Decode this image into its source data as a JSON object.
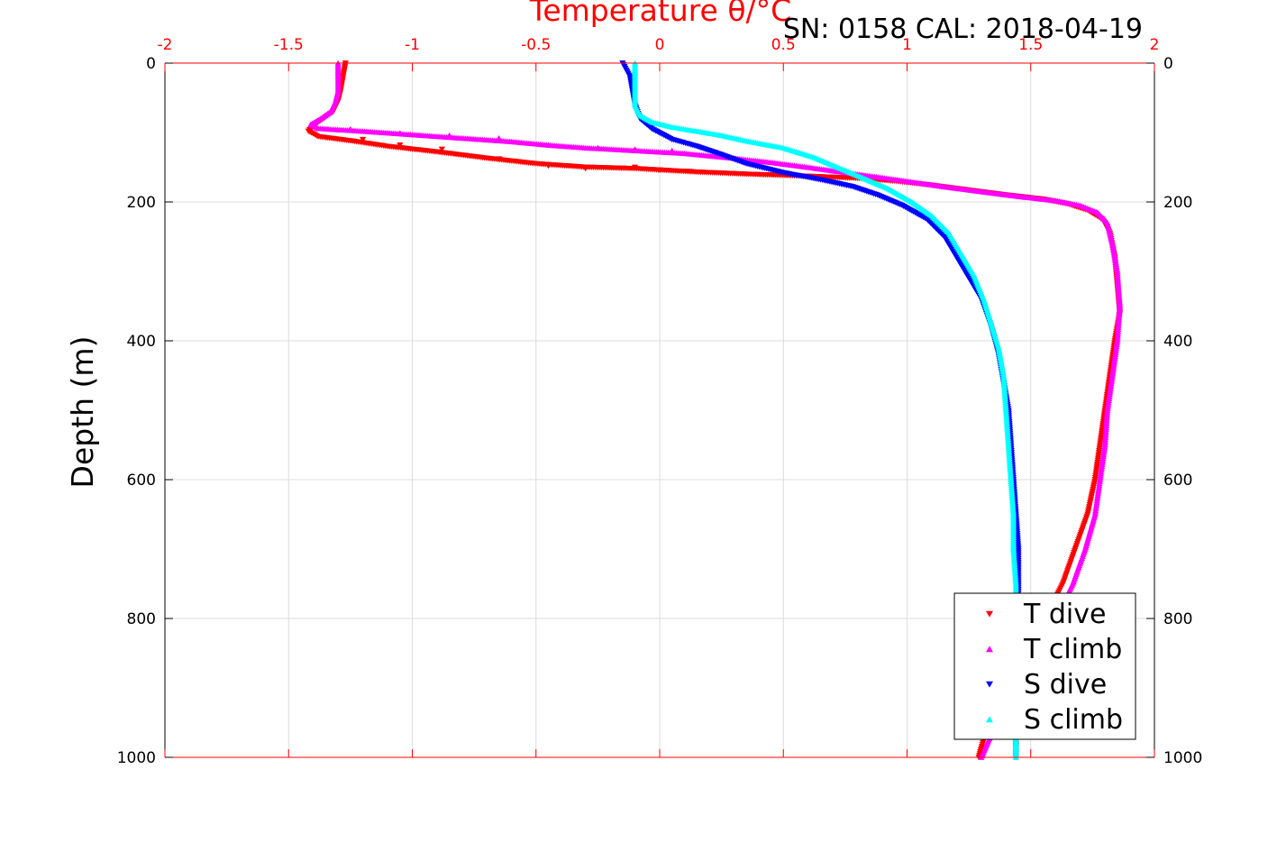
{
  "chart_data": {
    "type": "scatter",
    "title": "",
    "subtitle": "SN: 0158  CAL: 2018-04-19",
    "xlabel": "Temperature θ/°C",
    "ylabel": "Depth (m)",
    "xlim": [
      -2,
      2
    ],
    "ylim": [
      0,
      1000
    ],
    "y_reversed": true,
    "x_axis_position": "top",
    "x_ticks": [
      "-2",
      "-1.5",
      "-1",
      "-0.5",
      "0",
      "0.5",
      "1",
      "1.5",
      "2"
    ],
    "y_ticks_left": [
      "0",
      "200",
      "400",
      "600",
      "800",
      "1000"
    ],
    "y_ticks_right": [
      "0",
      "200",
      "400",
      "600",
      "800",
      "1000"
    ],
    "grid": true,
    "legend_position": "bottom-right",
    "series": [
      {
        "name": "T dive",
        "marker": "triangle-down",
        "color": "#ff0000",
        "profile": [
          [
            -1.27,
            0
          ],
          [
            -1.28,
            20
          ],
          [
            -1.29,
            40
          ],
          [
            -1.3,
            55
          ],
          [
            -1.32,
            70
          ],
          [
            -1.36,
            80
          ],
          [
            -1.4,
            90
          ],
          [
            -1.42,
            98
          ],
          [
            -1.38,
            106
          ],
          [
            -1.25,
            112
          ],
          [
            -1.1,
            120
          ],
          [
            -0.9,
            128
          ],
          [
            -0.7,
            137
          ],
          [
            -0.5,
            145
          ],
          [
            -0.3,
            150
          ],
          [
            -0.1,
            152
          ],
          [
            0.05,
            155
          ],
          [
            0.15,
            157
          ],
          [
            0.35,
            160
          ],
          [
            0.6,
            163
          ],
          [
            0.8,
            166
          ],
          [
            0.95,
            170
          ],
          [
            1.1,
            176
          ],
          [
            1.25,
            183
          ],
          [
            1.4,
            190
          ],
          [
            1.55,
            196
          ],
          [
            1.65,
            203
          ],
          [
            1.73,
            212
          ],
          [
            1.79,
            225
          ],
          [
            1.82,
            245
          ],
          [
            1.84,
            280
          ],
          [
            1.85,
            320
          ],
          [
            1.86,
            360
          ],
          [
            1.84,
            400
          ],
          [
            1.82,
            450
          ],
          [
            1.8,
            500
          ],
          [
            1.78,
            550
          ],
          [
            1.76,
            600
          ],
          [
            1.73,
            650
          ],
          [
            1.68,
            700
          ],
          [
            1.63,
            750
          ],
          [
            1.56,
            800
          ],
          [
            1.48,
            850
          ],
          [
            1.4,
            900
          ],
          [
            1.33,
            950
          ],
          [
            1.29,
            1000
          ]
        ],
        "sparse": [
          [
            -1.2,
            110
          ],
          [
            -1.05,
            118
          ],
          [
            -0.88,
            124
          ],
          [
            -0.65,
            138
          ],
          [
            -0.45,
            148
          ],
          [
            -0.3,
            152
          ],
          [
            -0.1,
            150
          ],
          [
            0.0,
            154
          ],
          [
            0.12,
            156
          ]
        ]
      },
      {
        "name": "T climb",
        "marker": "triangle-up",
        "color": "#ff00ff",
        "profile": [
          [
            -1.3,
            0
          ],
          [
            -1.3,
            20
          ],
          [
            -1.3,
            40
          ],
          [
            -1.31,
            55
          ],
          [
            -1.33,
            70
          ],
          [
            -1.37,
            80
          ],
          [
            -1.41,
            88
          ],
          [
            -1.38,
            94
          ],
          [
            -1.2,
            98
          ],
          [
            -1.0,
            103
          ],
          [
            -0.8,
            108
          ],
          [
            -0.6,
            113
          ],
          [
            -0.45,
            118
          ],
          [
            -0.3,
            122
          ],
          [
            -0.1,
            126
          ],
          [
            0.1,
            130
          ],
          [
            0.3,
            137
          ],
          [
            0.45,
            143
          ],
          [
            0.6,
            150
          ],
          [
            0.8,
            160
          ],
          [
            1.0,
            170
          ],
          [
            1.15,
            178
          ],
          [
            1.3,
            185
          ],
          [
            1.45,
            192
          ],
          [
            1.6,
            198
          ],
          [
            1.7,
            205
          ],
          [
            1.77,
            215
          ],
          [
            1.81,
            230
          ],
          [
            1.83,
            260
          ],
          [
            1.85,
            300
          ],
          [
            1.86,
            350
          ],
          [
            1.85,
            400
          ],
          [
            1.83,
            450
          ],
          [
            1.81,
            500
          ],
          [
            1.8,
            550
          ],
          [
            1.78,
            600
          ],
          [
            1.76,
            650
          ],
          [
            1.72,
            700
          ],
          [
            1.67,
            750
          ],
          [
            1.6,
            800
          ],
          [
            1.52,
            850
          ],
          [
            1.43,
            900
          ],
          [
            1.36,
            950
          ],
          [
            1.3,
            1000
          ]
        ],
        "sparse": [
          [
            -1.25,
            95
          ],
          [
            -1.05,
            101
          ],
          [
            -0.85,
            104
          ],
          [
            -0.65,
            108
          ],
          [
            -0.45,
            118
          ],
          [
            -0.25,
            122
          ],
          [
            -0.1,
            124
          ],
          [
            0.05,
            126
          ]
        ]
      },
      {
        "name": "S dive",
        "marker": "triangle-down",
        "color": "#0000ff",
        "profile": [
          [
            -0.15,
            0
          ],
          [
            -0.12,
            20
          ],
          [
            -0.11,
            40
          ],
          [
            -0.1,
            60
          ],
          [
            -0.08,
            80
          ],
          [
            -0.03,
            95
          ],
          [
            0.05,
            110
          ],
          [
            0.15,
            120
          ],
          [
            0.25,
            132
          ],
          [
            0.35,
            145
          ],
          [
            0.5,
            158
          ],
          [
            0.65,
            168
          ],
          [
            0.78,
            178
          ],
          [
            0.88,
            190
          ],
          [
            0.98,
            205
          ],
          [
            1.08,
            225
          ],
          [
            1.15,
            250
          ],
          [
            1.2,
            280
          ],
          [
            1.25,
            310
          ],
          [
            1.3,
            340
          ],
          [
            1.34,
            380
          ],
          [
            1.37,
            420
          ],
          [
            1.39,
            460
          ],
          [
            1.41,
            500
          ],
          [
            1.42,
            550
          ],
          [
            1.43,
            600
          ],
          [
            1.44,
            650
          ],
          [
            1.45,
            700
          ],
          [
            1.45,
            750
          ],
          [
            1.45,
            800
          ],
          [
            1.44,
            850
          ],
          [
            1.44,
            900
          ],
          [
            1.44,
            950
          ],
          [
            1.44,
            1000
          ]
        ],
        "sparse": []
      },
      {
        "name": "S climb",
        "marker": "triangle-up",
        "color": "#00ffff",
        "profile": [
          [
            -0.1,
            0
          ],
          [
            -0.1,
            20
          ],
          [
            -0.1,
            40
          ],
          [
            -0.1,
            60
          ],
          [
            -0.08,
            75
          ],
          [
            -0.03,
            85
          ],
          [
            0.05,
            92
          ],
          [
            0.15,
            98
          ],
          [
            0.25,
            104
          ],
          [
            0.35,
            112
          ],
          [
            0.5,
            122
          ],
          [
            0.62,
            135
          ],
          [
            0.72,
            150
          ],
          [
            0.82,
            165
          ],
          [
            0.92,
            180
          ],
          [
            1.02,
            200
          ],
          [
            1.1,
            220
          ],
          [
            1.17,
            245
          ],
          [
            1.22,
            275
          ],
          [
            1.27,
            305
          ],
          [
            1.31,
            340
          ],
          [
            1.34,
            375
          ],
          [
            1.37,
            410
          ],
          [
            1.39,
            450
          ],
          [
            1.4,
            500
          ],
          [
            1.41,
            550
          ],
          [
            1.42,
            600
          ],
          [
            1.43,
            650
          ],
          [
            1.43,
            700
          ],
          [
            1.44,
            750
          ],
          [
            1.44,
            800
          ],
          [
            1.44,
            850
          ],
          [
            1.44,
            900
          ],
          [
            1.44,
            950
          ],
          [
            1.44,
            1000
          ]
        ],
        "sparse": []
      }
    ],
    "colors": {
      "x_axis": "#ff0000",
      "y_axis": "#000000",
      "grid": "#dcdcdc"
    }
  }
}
